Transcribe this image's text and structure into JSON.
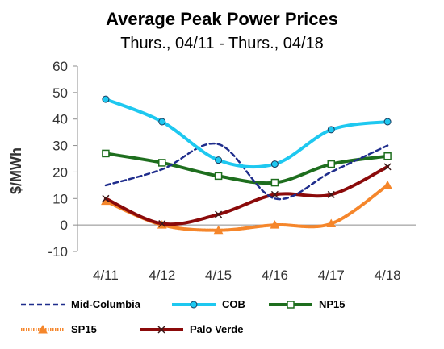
{
  "chart_data": {
    "type": "line",
    "title": "Average Peak Power Prices",
    "subtitle": "Thurs., 04/11 - Thurs., 04/18",
    "xlabel": "",
    "ylabel": "$/MWh",
    "ylim": [
      -10,
      60
    ],
    "yticks": [
      "60",
      "50",
      "40",
      "30",
      "20",
      "10",
      "0",
      "-10"
    ],
    "categories": [
      "4/11",
      "4/12",
      "4/15",
      "4/16",
      "4/17",
      "4/18"
    ],
    "grid": false,
    "legend_position": "bottom",
    "series": [
      {
        "name": "Mid-Columbia",
        "values": [
          15,
          21,
          30.5,
          10,
          20,
          30
        ],
        "color": "#1f2d8c",
        "style": "dashed",
        "marker": "none"
      },
      {
        "name": "COB",
        "values": [
          47.5,
          39,
          24.5,
          23,
          36,
          39
        ],
        "color": "#1ec8f0",
        "style": "solid",
        "marker": "circle"
      },
      {
        "name": "NP15",
        "values": [
          27,
          23.5,
          18.5,
          16,
          23,
          26
        ],
        "color": "#1e6e1e",
        "style": "solid",
        "marker": "square"
      },
      {
        "name": "SP15",
        "values": [
          9,
          0,
          -2,
          0,
          0.5,
          15
        ],
        "color": "#f5862b",
        "style": "dotted",
        "marker": "triangle"
      },
      {
        "name": "Palo Verde",
        "values": [
          10,
          0.5,
          4,
          11.5,
          11.5,
          22
        ],
        "color": "#8b0a0a",
        "style": "solid",
        "marker": "x"
      }
    ]
  }
}
